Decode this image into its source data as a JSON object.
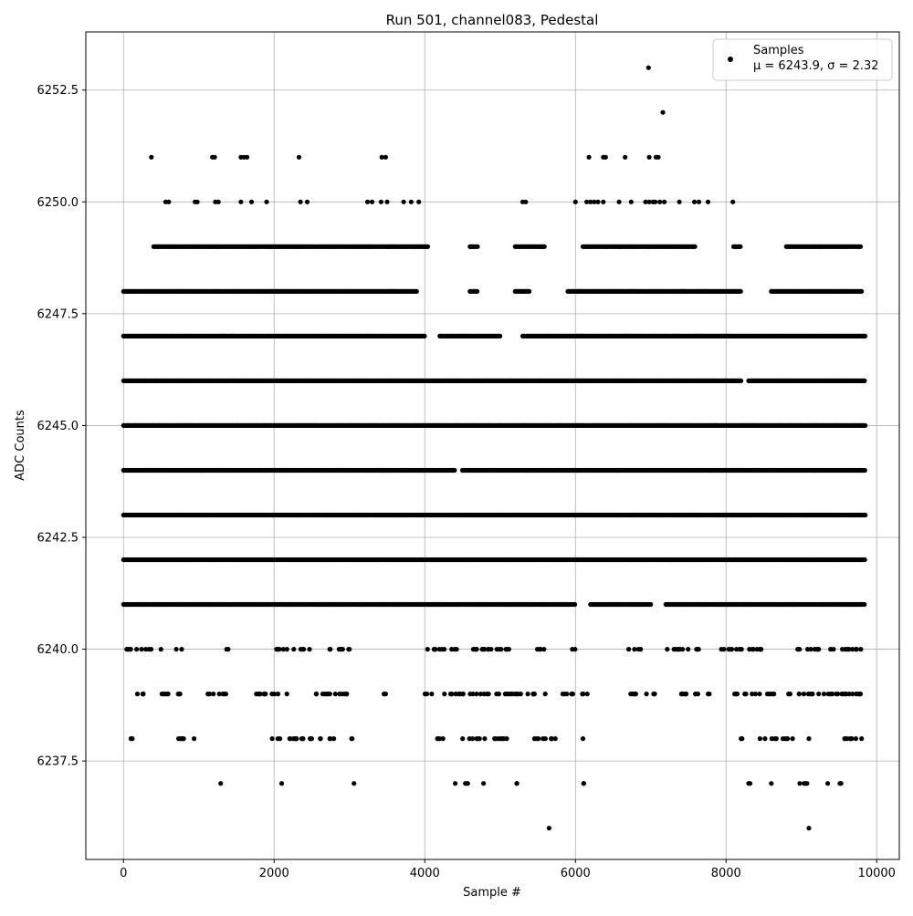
{
  "chart_data": {
    "type": "scatter",
    "title": "Run 501, channel083, Pedestal",
    "xlabel": "Sample #",
    "ylabel": "ADC Counts",
    "xlim": [
      -500,
      10300
    ],
    "ylim": [
      6235.3,
      6253.8
    ],
    "x_ticks": [
      0,
      2000,
      4000,
      6000,
      8000,
      10000
    ],
    "x_tick_labels": [
      "0",
      "2000",
      "4000",
      "6000",
      "8000",
      "10000"
    ],
    "y_ticks": [
      6237.5,
      6240.0,
      6242.5,
      6245.0,
      6247.5,
      6250.0,
      6252.5
    ],
    "y_tick_labels": [
      "6237.5",
      "6240.0",
      "6242.5",
      "6245.0",
      "6247.5",
      "6250.0",
      "6252.5"
    ],
    "grid": true,
    "legend": {
      "placement": "top-right",
      "entries": [
        {
          "label": "Samples",
          "detail": "μ = 6243.9, σ = 2.32"
        }
      ]
    },
    "point_color": "#000000",
    "x_range": [
      0,
      9850
    ],
    "series": [
      {
        "name": "Samples",
        "points": [
          [
            6970,
            6253
          ],
          [
            7160,
            6252
          ],
          [
            370,
            6251
          ],
          [
            1180,
            6251
          ],
          [
            1210,
            6251
          ],
          [
            1560,
            6251
          ],
          [
            1600,
            6251
          ],
          [
            1640,
            6251
          ],
          [
            2330,
            6251
          ],
          [
            3430,
            6251
          ],
          [
            3480,
            6251
          ],
          [
            6180,
            6251
          ],
          [
            6370,
            6251
          ],
          [
            6400,
            6251
          ],
          [
            6660,
            6251
          ],
          [
            6980,
            6251
          ],
          [
            7070,
            6251
          ],
          [
            7100,
            6251
          ],
          [
            560,
            6250
          ],
          [
            600,
            6250
          ],
          [
            950,
            6250
          ],
          [
            980,
            6250
          ],
          [
            1220,
            6250
          ],
          [
            1260,
            6250
          ],
          [
            1560,
            6250
          ],
          [
            1700,
            6250
          ],
          [
            1900,
            6250
          ],
          [
            2350,
            6250
          ],
          [
            2440,
            6250
          ],
          [
            3240,
            6250
          ],
          [
            3300,
            6250
          ],
          [
            3420,
            6250
          ],
          [
            3500,
            6250
          ],
          [
            3720,
            6250
          ],
          [
            3820,
            6250
          ],
          [
            3920,
            6250
          ],
          [
            5300,
            6250
          ],
          [
            5340,
            6250
          ],
          [
            6000,
            6250
          ],
          [
            6150,
            6250
          ],
          [
            6200,
            6250
          ],
          [
            6250,
            6250
          ],
          [
            6300,
            6250
          ],
          [
            6370,
            6250
          ],
          [
            6580,
            6250
          ],
          [
            6740,
            6250
          ],
          [
            6930,
            6250
          ],
          [
            6980,
            6250
          ],
          [
            7030,
            6250
          ],
          [
            7060,
            6250
          ],
          [
            7120,
            6250
          ],
          [
            7180,
            6250
          ],
          [
            7380,
            6250
          ],
          [
            7580,
            6250
          ],
          [
            7640,
            6250
          ],
          [
            7760,
            6250
          ],
          [
            8090,
            6250
          ],
          [
            5650,
            6236
          ],
          [
            9100,
            6236
          ]
        ],
        "dense_levels": [
          {
            "y": 6249,
            "segments": [
              [
                400,
                4050
              ],
              [
                4600,
                4700
              ],
              [
                5200,
                5600
              ],
              [
                6100,
                7600
              ],
              [
                8100,
                8200
              ],
              [
                8800,
                9800
              ]
            ]
          },
          {
            "y": 6248,
            "segments": [
              [
                0,
                3900
              ],
              [
                4600,
                4700
              ],
              [
                5200,
                5400
              ],
              [
                5900,
                8200
              ],
              [
                8600,
                9800
              ]
            ]
          },
          {
            "y": 6247,
            "segments": [
              [
                0,
                4000
              ],
              [
                4200,
                5000
              ],
              [
                5300,
                9850
              ]
            ]
          },
          {
            "y": 6246,
            "segments": [
              [
                0,
                4100
              ],
              [
                4100,
                8200
              ],
              [
                8300,
                9850
              ]
            ]
          },
          {
            "y": 6245,
            "segments": [
              [
                0,
                9850
              ]
            ]
          },
          {
            "y": 6244,
            "segments": [
              [
                0,
                4400
              ],
              [
                4500,
                9850
              ]
            ]
          },
          {
            "y": 6243,
            "segments": [
              [
                0,
                9850
              ]
            ]
          },
          {
            "y": 6242,
            "segments": [
              [
                0,
                9850
              ]
            ]
          },
          {
            "y": 6241,
            "segments": [
              [
                0,
                6000
              ],
              [
                6200,
                7000
              ],
              [
                7200,
                9850
              ]
            ]
          }
        ],
        "sparse_levels": [
          {
            "y": 6240,
            "segments": [
              [
                0,
                500
              ],
              [
                700,
                800
              ],
              [
                1300,
                1400
              ],
              [
                2000,
                2500
              ],
              [
                2700,
                3000
              ],
              [
                4000,
                5200
              ],
              [
                5400,
                5600
              ],
              [
                5900,
                6000
              ],
              [
                6700,
                6900
              ],
              [
                7200,
                7700
              ],
              [
                7900,
                8600
              ],
              [
                8900,
                9800
              ]
            ]
          },
          {
            "y": 6239,
            "segments": [
              [
                100,
                300
              ],
              [
                500,
                900
              ],
              [
                1100,
                1400
              ],
              [
                1700,
                2200
              ],
              [
                2500,
                3100
              ],
              [
                3400,
                3500
              ],
              [
                4000,
                5600
              ],
              [
                5800,
                6200
              ],
              [
                6700,
                7100
              ],
              [
                7300,
                7800
              ],
              [
                8000,
                9850
              ]
            ]
          },
          {
            "y": 6238,
            "segments": [
              [
                70,
                120
              ],
              [
                700,
                950
              ],
              [
                1900,
                2800
              ],
              [
                3000,
                3100
              ],
              [
                4100,
                4300
              ],
              [
                4500,
                4800
              ],
              [
                4900,
                5200
              ],
              [
                5400,
                5800
              ],
              [
                6100,
                6100
              ],
              [
                8150,
                8250
              ],
              [
                8450,
                8900
              ],
              [
                9100,
                9100
              ],
              [
                9500,
                9800
              ]
            ]
          },
          {
            "y": 6237,
            "segments": [
              [
                1290,
                1290
              ],
              [
                2100,
                2100
              ],
              [
                3060,
                3060
              ],
              [
                4400,
                4600
              ],
              [
                4780,
                4780
              ],
              [
                5220,
                5240
              ],
              [
                6100,
                6120
              ],
              [
                8300,
                8320
              ],
              [
                8600,
                8600
              ],
              [
                8920,
                9120
              ],
              [
                9350,
                9350
              ],
              [
                9500,
                9560
              ]
            ]
          }
        ]
      }
    ]
  }
}
